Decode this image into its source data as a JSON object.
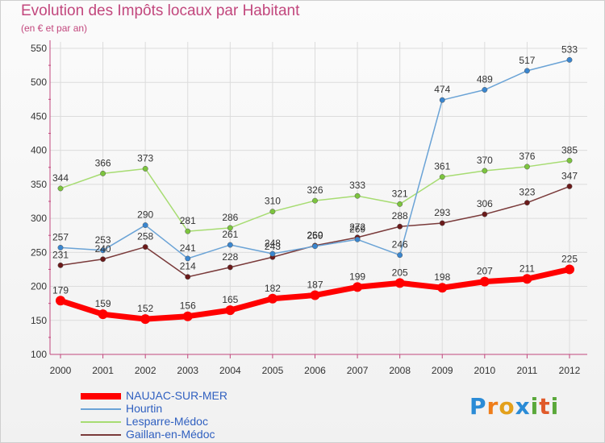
{
  "title": "Evolution des Impôts locaux par Habitant",
  "subtitle": "(en € et par an)",
  "logo": {
    "text": "Proxiti",
    "letters": [
      {
        "ch": "P",
        "color": "#2a8bd6"
      },
      {
        "ch": "r",
        "color": "#ef7d1a"
      },
      {
        "ch": "o",
        "color": "#e3a01b"
      },
      {
        "ch": "x",
        "color": "#2a8bd6"
      },
      {
        "ch": "i",
        "color": "#5aa83a"
      },
      {
        "ch": "t",
        "color": "#e05a2a"
      },
      {
        "ch": "i",
        "color": "#5aa83a"
      }
    ]
  },
  "chart_data": {
    "type": "line",
    "x": [
      "2000",
      "2001",
      "2002",
      "2003",
      "2004",
      "2005",
      "2006",
      "2007",
      "2008",
      "2009",
      "2010",
      "2011",
      "2012"
    ],
    "ylim": [
      100,
      550
    ],
    "yticks": [
      100,
      150,
      200,
      250,
      300,
      350,
      400,
      450,
      500,
      550
    ],
    "grid": true,
    "legend_position": "bottom-left",
    "series": [
      {
        "name": "NAUJAC-SUR-MER",
        "color": "#ff0000",
        "point_color": "#ff0000",
        "values": [
          179,
          159,
          152,
          156,
          165,
          182,
          187,
          199,
          205,
          198,
          207,
          211,
          225
        ]
      },
      {
        "name": "Hourtin",
        "color": "#6aa3d6",
        "point_color": "#3a86cf",
        "values": [
          257,
          253,
          290,
          241,
          261,
          248,
          259,
          269,
          246,
          474,
          489,
          517,
          533
        ]
      },
      {
        "name": "Lesparre-Médoc",
        "color": "#a7dc72",
        "point_color": "#7cc43e",
        "values": [
          344,
          366,
          373,
          281,
          286,
          310,
          326,
          333,
          321,
          361,
          370,
          376,
          385
        ]
      },
      {
        "name": "Gaillan-en-Médoc",
        "color": "#7a3a3a",
        "point_color": "#6b1a1a",
        "values": [
          231,
          240,
          258,
          214,
          228,
          243,
          260,
          272,
          288,
          293,
          306,
          323,
          347
        ]
      }
    ]
  }
}
